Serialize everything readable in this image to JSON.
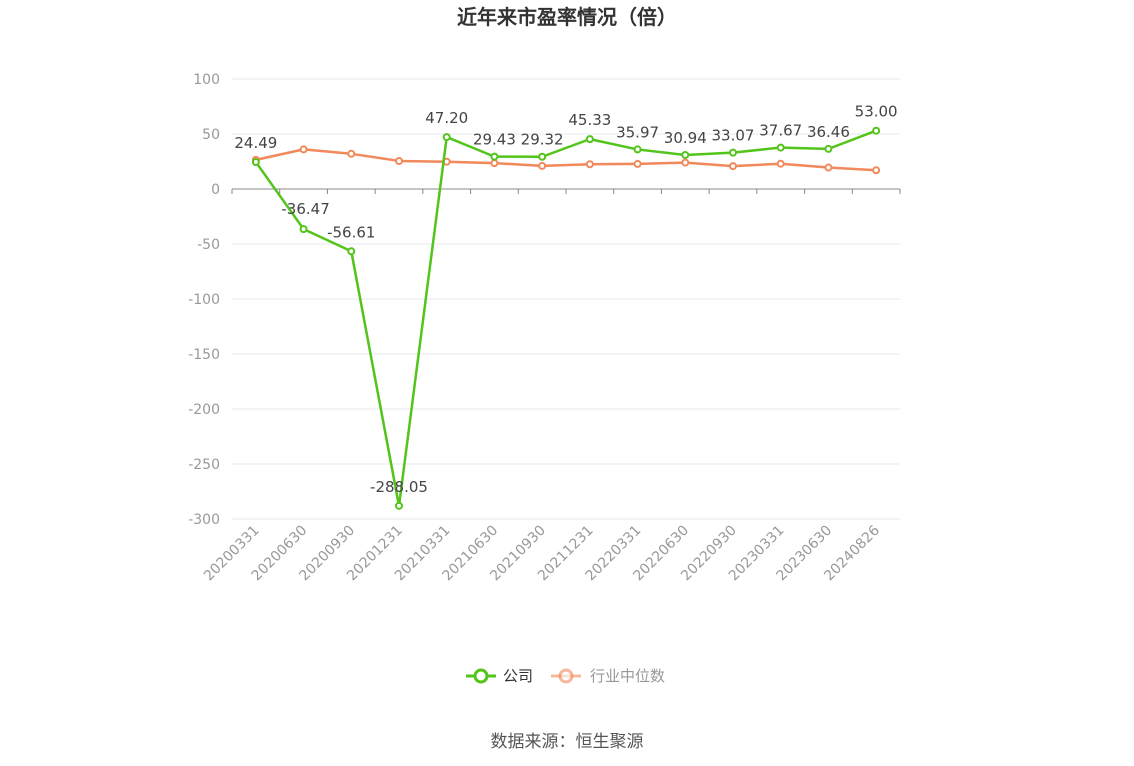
{
  "title": "近年来市盈率情况（倍）",
  "source": "数据来源：恒生聚源",
  "colors": {
    "company": "#52c41a",
    "industry": "#f2895a",
    "grid": "#e6e9f0",
    "axis": "#999999",
    "legend_text_company": "#333333",
    "legend_text_industry": "#999999"
  },
  "chart_data": {
    "type": "line",
    "title": "近年来市盈率情况（倍）",
    "categories": [
      "20200331",
      "20200630",
      "20200930",
      "20201231",
      "20210331",
      "20210630",
      "20210930",
      "20211231",
      "20220331",
      "20220630",
      "20220930",
      "20230331",
      "20230630",
      "20240826"
    ],
    "ylim": [
      -300,
      100
    ],
    "yticks": [
      100,
      50,
      0,
      -50,
      -100,
      -150,
      -200,
      -250,
      -300
    ],
    "grid": true,
    "legend_position": "bottom",
    "series": [
      {
        "name": "公司",
        "values": [
          24.49,
          -36.47,
          -56.61,
          -288.05,
          47.2,
          29.43,
          29.32,
          45.33,
          35.97,
          30.94,
          33.07,
          37.67,
          36.46,
          53.0
        ],
        "labels": [
          "24.49",
          "-36.47",
          "-56.61",
          "-288.05",
          "47.20",
          "29.43",
          "29.32",
          "45.33",
          "35.97",
          "30.94",
          "33.07",
          "37.67",
          "36.46",
          "53.00"
        ]
      },
      {
        "name": "行业中位数",
        "values": [
          26.5,
          36.0,
          32.0,
          25.5,
          24.8,
          23.5,
          21.0,
          22.5,
          22.8,
          24.0,
          20.8,
          23.0,
          19.5,
          17.0
        ]
      }
    ]
  }
}
